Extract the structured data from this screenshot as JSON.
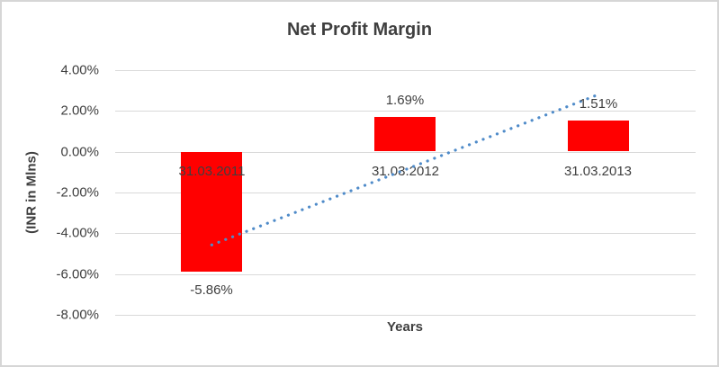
{
  "chart_data": {
    "type": "bar",
    "title": "Net Profit Margin",
    "categories": [
      "31.03.2011",
      "31.03.2012",
      "31.03.2013"
    ],
    "values": [
      -5.86,
      1.69,
      1.51
    ],
    "data_labels": [
      "-5.86%",
      "1.69%",
      "1.51%"
    ],
    "xlabel": "Years",
    "ylabel": "(INR in Mlns)",
    "ylim": [
      -8,
      4
    ],
    "yticks": [
      {
        "value": 4,
        "label": "4.00%"
      },
      {
        "value": 2,
        "label": "2.00%"
      },
      {
        "value": 0,
        "label": "0.00%"
      },
      {
        "value": -2,
        "label": "-2.00%"
      },
      {
        "value": -4,
        "label": "-4.00%"
      },
      {
        "value": -6,
        "label": "-6.00%"
      },
      {
        "value": -8,
        "label": "-8.00%"
      }
    ],
    "grid": true,
    "legend": "none",
    "bar_color": "#ff0000",
    "gridline_color": "#d9d9d9",
    "text_color": "#3f3f3f",
    "trendline": {
      "type": "linear",
      "style": "dotted",
      "color": "#4f8bc9"
    }
  }
}
